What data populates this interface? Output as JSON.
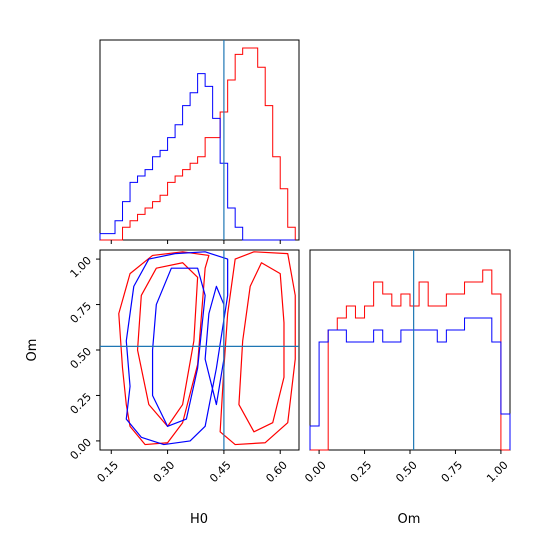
{
  "chart_data": {
    "type": "corner",
    "params": [
      "H0",
      "Om"
    ],
    "truths": {
      "H0": 0.45,
      "Om": 0.52
    },
    "colors": {
      "red_series": "#ff0000",
      "blue_series": "#0000ff",
      "truth_line": "#1f77b4"
    },
    "axes": {
      "H0": {
        "label": "H0",
        "range": [
          0.12,
          0.65
        ],
        "ticks": [
          "0.15",
          "0.30",
          "0.45",
          "0.60"
        ],
        "tick_values": [
          0.15,
          0.3,
          0.45,
          0.6
        ]
      },
      "Om": {
        "label": "Om",
        "range": [
          -0.05,
          1.05
        ],
        "ticks": [
          "0.00",
          "0.25",
          "0.50",
          "0.75",
          "1.00"
        ],
        "tick_values": [
          0.0,
          0.25,
          0.5,
          0.75,
          1.0
        ]
      }
    },
    "hist_H0": {
      "bin_edges": [
        0.12,
        0.14,
        0.16,
        0.18,
        0.2,
        0.22,
        0.24,
        0.26,
        0.28,
        0.3,
        0.32,
        0.34,
        0.36,
        0.38,
        0.4,
        0.42,
        0.44,
        0.46,
        0.48,
        0.5,
        0.52,
        0.54,
        0.56,
        0.58,
        0.6,
        0.62,
        0.64
      ],
      "series": [
        {
          "color": "red",
          "values": [
            0,
            0,
            0,
            2,
            3,
            4,
            5,
            6,
            7,
            9,
            10,
            11,
            12,
            13,
            16,
            16,
            20,
            25,
            29,
            30,
            30,
            27,
            21,
            13,
            8,
            2
          ]
        },
        {
          "color": "blue",
          "values": [
            1,
            1,
            3,
            6,
            9,
            10,
            11,
            13,
            14,
            16,
            18,
            21,
            23,
            26,
            24,
            19,
            12,
            5,
            2,
            0,
            0,
            0,
            0,
            0,
            0,
            0
          ]
        }
      ]
    },
    "hist_Om": {
      "bin_edges": [
        -0.05,
        0.0,
        0.05,
        0.1,
        0.15,
        0.2,
        0.25,
        0.3,
        0.35,
        0.4,
        0.45,
        0.5,
        0.55,
        0.6,
        0.65,
        0.7,
        0.75,
        0.8,
        0.85,
        0.9,
        0.95,
        1.0,
        1.05
      ],
      "series": [
        {
          "color": "red",
          "values": [
            0,
            0,
            10,
            11,
            12,
            11,
            12,
            14,
            13,
            12,
            13,
            12,
            14,
            12,
            12,
            13,
            13,
            14,
            14,
            15,
            13,
            0
          ]
        },
        {
          "color": "blue",
          "values": [
            2,
            9,
            10,
            10,
            9,
            9,
            9,
            10,
            9,
            9,
            10,
            10,
            10,
            10,
            9,
            10,
            10,
            11,
            11,
            11,
            9,
            3
          ]
        }
      ]
    },
    "contours": [
      {
        "color": "red",
        "points": [
          [
            0.2,
            0.08
          ],
          [
            0.24,
            -0.02
          ],
          [
            0.3,
            -0.01
          ],
          [
            0.34,
            0.1
          ],
          [
            0.38,
            0.42
          ],
          [
            0.4,
            0.95
          ],
          [
            0.41,
            1.02
          ],
          [
            0.34,
            1.04
          ],
          [
            0.26,
            1.02
          ],
          [
            0.2,
            0.92
          ],
          [
            0.17,
            0.7
          ],
          [
            0.18,
            0.4
          ],
          [
            0.19,
            0.2
          ]
        ]
      },
      {
        "color": "red",
        "points": [
          [
            0.25,
            0.2
          ],
          [
            0.3,
            0.08
          ],
          [
            0.34,
            0.2
          ],
          [
            0.37,
            0.55
          ],
          [
            0.38,
            0.9
          ],
          [
            0.34,
            0.98
          ],
          [
            0.27,
            0.95
          ],
          [
            0.23,
            0.8
          ],
          [
            0.22,
            0.5
          ]
        ]
      },
      {
        "color": "red",
        "points": [
          [
            0.44,
            0.05
          ],
          [
            0.48,
            -0.02
          ],
          [
            0.56,
            -0.01
          ],
          [
            0.62,
            0.1
          ],
          [
            0.64,
            0.45
          ],
          [
            0.64,
            0.8
          ],
          [
            0.62,
            1.03
          ],
          [
            0.53,
            1.04
          ],
          [
            0.48,
            1.0
          ],
          [
            0.46,
            0.7
          ],
          [
            0.45,
            0.4
          ]
        ]
      },
      {
        "color": "red",
        "points": [
          [
            0.49,
            0.2
          ],
          [
            0.53,
            0.05
          ],
          [
            0.58,
            0.1
          ],
          [
            0.61,
            0.35
          ],
          [
            0.61,
            0.65
          ],
          [
            0.6,
            0.92
          ],
          [
            0.55,
            0.98
          ],
          [
            0.52,
            0.85
          ],
          [
            0.5,
            0.55
          ]
        ]
      },
      {
        "color": "blue",
        "points": [
          [
            0.19,
            0.12
          ],
          [
            0.23,
            0.02
          ],
          [
            0.29,
            -0.02
          ],
          [
            0.36,
            0.0
          ],
          [
            0.4,
            0.08
          ],
          [
            0.43,
            0.4
          ],
          [
            0.46,
            0.8
          ],
          [
            0.46,
            1.0
          ],
          [
            0.4,
            1.04
          ],
          [
            0.32,
            1.03
          ],
          [
            0.25,
            1.0
          ],
          [
            0.21,
            0.85
          ],
          [
            0.19,
            0.55
          ],
          [
            0.2,
            0.3
          ]
        ]
      },
      {
        "color": "blue",
        "points": [
          [
            0.26,
            0.25
          ],
          [
            0.3,
            0.08
          ],
          [
            0.35,
            0.12
          ],
          [
            0.38,
            0.4
          ],
          [
            0.4,
            0.8
          ],
          [
            0.38,
            0.95
          ],
          [
            0.31,
            0.95
          ],
          [
            0.27,
            0.75
          ],
          [
            0.26,
            0.5
          ]
        ]
      },
      {
        "color": "blue",
        "points": [
          [
            0.4,
            0.45
          ],
          [
            0.43,
            0.2
          ],
          [
            0.45,
            0.45
          ],
          [
            0.45,
            0.75
          ],
          [
            0.43,
            0.85
          ],
          [
            0.41,
            0.7
          ]
        ]
      }
    ]
  }
}
